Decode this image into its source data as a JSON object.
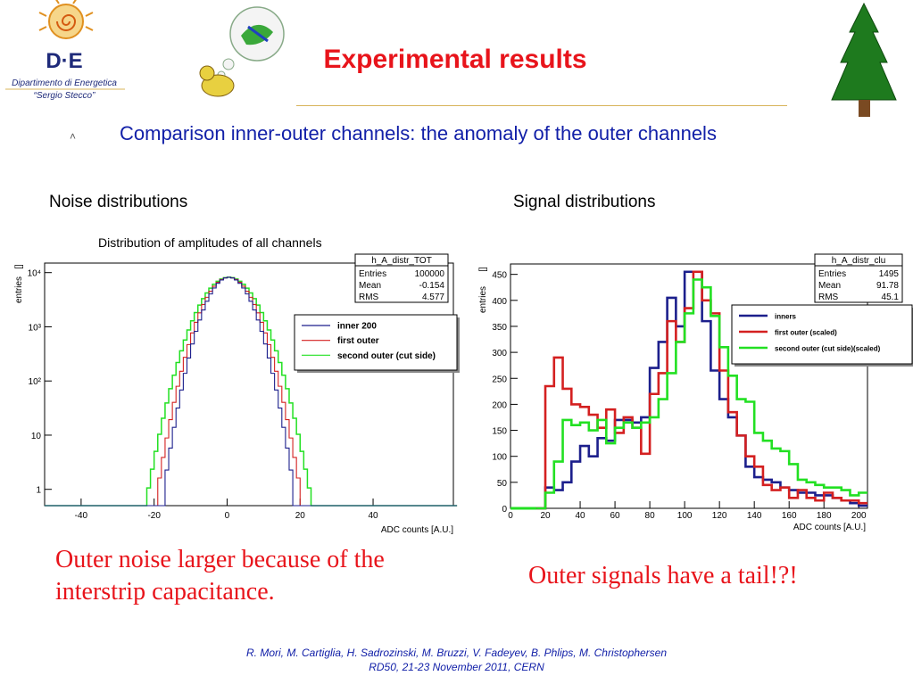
{
  "slide": {
    "title": "Experimental results",
    "bullet": "Comparison inner-outer channels: the anomaly of the outer channels",
    "logo": {
      "name": "D·E",
      "line1": "Dipartimento di Energetica",
      "line2": "“Sergio Stecco”"
    },
    "icons": {
      "left_cartoon": "dreaming-duck-icon",
      "right_tree": "fir-tree-icon"
    },
    "noise_panel_title": "Noise distributions",
    "signal_panel_title": "Signal distributions",
    "noise_conclusion": "Outer noise larger because of the interstrip capacitance.",
    "signal_conclusion": "Outer signals have a tail!?!",
    "footer_authors": "R. Mori, M. Cartiglia, H. Sadrozinski, M. Bruzzi, V. Fadeyev, B. Phlips, M. Christophersen",
    "footer_conference": "RD50, 21-23 November 2011, CERN"
  },
  "colors": {
    "title": "#e8141b",
    "bullet": "#1220a8",
    "inner": "#1c1f8c",
    "first_outer": "#d42020",
    "second_outer": "#22e022",
    "rule": "#d8b45a"
  },
  "chart_data": [
    {
      "type": "line",
      "title": "Distribution of amplitudes of all channels",
      "xlabel": "ADC counts   [A.U.]",
      "ylabel": "entries",
      "ylabel_unit": "[]",
      "y_scale": "log",
      "xlim": [
        -50,
        62
      ],
      "ylim": [
        0.5,
        15000
      ],
      "x_ticks": [
        -40,
        -20,
        0,
        20,
        40
      ],
      "y_ticks": [
        1,
        10,
        100,
        1000,
        10000
      ],
      "y_tick_labels": [
        "1",
        "10",
        "10²",
        "10³",
        "10⁴"
      ],
      "stats": {
        "name": "h_A_distr_TOT",
        "rows": [
          [
            "Entries",
            "100000"
          ],
          [
            "Mean",
            "-0.154"
          ],
          [
            "RMS",
            "4.577"
          ]
        ]
      },
      "legend_position": "top-right",
      "series": [
        {
          "name": "inner 200",
          "sigma": 4.2,
          "x": [
            -20,
            -18,
            -16,
            -14,
            -12,
            -10,
            -8,
            -6,
            -4,
            -2,
            0,
            2,
            4,
            6,
            8,
            10,
            12,
            14,
            16,
            18,
            20
          ],
          "y": [
            1.2,
            5,
            18,
            55,
            150,
            400,
            1000,
            2800,
            5200,
            7300,
            8200,
            7300,
            5200,
            2800,
            1000,
            400,
            150,
            55,
            18,
            5,
            1.2
          ]
        },
        {
          "name": "first outer",
          "sigma": 4.6,
          "x": [
            -21,
            -19,
            -17,
            -15,
            -13,
            -11,
            -9,
            -7,
            -5,
            -3,
            -1,
            1,
            3,
            5,
            7,
            9,
            11,
            13,
            15,
            17,
            19,
            21
          ],
          "y": [
            1.5,
            6,
            20,
            55,
            140,
            330,
            800,
            1800,
            3800,
            6200,
            7800,
            7800,
            6200,
            3800,
            1800,
            800,
            330,
            140,
            55,
            20,
            6,
            1.5
          ]
        },
        {
          "name": "second outer (cut side)",
          "sigma": 5.2,
          "x": [
            -24,
            -22,
            -20,
            -18,
            -16,
            -14,
            -12,
            -10,
            -8,
            -6,
            -4,
            -2,
            0,
            2,
            4,
            6,
            8,
            10,
            12,
            14,
            16,
            18,
            20,
            22,
            24
          ],
          "y": [
            1.3,
            3.5,
            9,
            22,
            50,
            110,
            250,
            540,
            1100,
            2100,
            3700,
            5600,
            7300,
            6800,
            5600,
            3700,
            2100,
            1100,
            540,
            250,
            110,
            50,
            22,
            9,
            1.3
          ]
        }
      ]
    },
    {
      "type": "line",
      "title": "",
      "xlabel": "ADC counts   [A.U.]",
      "ylabel": "entries",
      "ylabel_unit": "[]",
      "xlim": [
        0,
        205
      ],
      "ylim": [
        0,
        470
      ],
      "x_ticks": [
        0,
        20,
        40,
        60,
        80,
        100,
        120,
        140,
        160,
        180,
        200
      ],
      "y_ticks": [
        0,
        50,
        100,
        150,
        200,
        250,
        300,
        350,
        400,
        450
      ],
      "stats": {
        "name": "h_A_distr_clu",
        "rows": [
          [
            "Entries",
            "1495"
          ],
          [
            "Mean",
            "91.78"
          ],
          [
            "RMS",
            "45.1"
          ]
        ]
      },
      "legend_position": "top-right",
      "series": [
        {
          "name": "inners",
          "x": [
            15,
            20,
            25,
            30,
            35,
            40,
            45,
            50,
            55,
            60,
            65,
            70,
            75,
            80,
            85,
            90,
            95,
            100,
            105,
            110,
            115,
            120,
            125,
            130,
            135,
            140,
            145,
            150,
            155,
            160,
            165,
            170,
            175,
            180,
            185,
            190,
            195,
            200
          ],
          "y": [
            0,
            40,
            35,
            50,
            90,
            120,
            100,
            135,
            130,
            170,
            170,
            165,
            175,
            270,
            320,
            405,
            350,
            455,
            455,
            360,
            265,
            210,
            175,
            140,
            80,
            60,
            55,
            50,
            40,
            35,
            30,
            30,
            25,
            25,
            20,
            15,
            10,
            5
          ]
        },
        {
          "name": "first outer (scaled)",
          "x": [
            15,
            20,
            25,
            30,
            35,
            40,
            45,
            50,
            55,
            60,
            65,
            70,
            75,
            80,
            85,
            90,
            95,
            100,
            105,
            110,
            115,
            120,
            125,
            130,
            135,
            140,
            145,
            150,
            155,
            160,
            165,
            170,
            175,
            180,
            185,
            190,
            195,
            200
          ],
          "y": [
            0,
            235,
            290,
            230,
            200,
            195,
            180,
            155,
            190,
            145,
            175,
            155,
            105,
            220,
            260,
            360,
            320,
            385,
            455,
            400,
            375,
            265,
            185,
            140,
            100,
            80,
            45,
            35,
            40,
            20,
            35,
            20,
            15,
            30,
            20,
            15,
            15,
            10
          ]
        },
        {
          "name": "second outer (cut side)(scaled)",
          "x": [
            15,
            20,
            25,
            30,
            35,
            40,
            45,
            50,
            55,
            60,
            65,
            70,
            75,
            80,
            85,
            90,
            95,
            100,
            105,
            110,
            115,
            120,
            125,
            130,
            135,
            140,
            145,
            150,
            155,
            160,
            165,
            170,
            175,
            180,
            185,
            190,
            195,
            200
          ],
          "y": [
            0,
            30,
            90,
            170,
            160,
            165,
            150,
            170,
            125,
            155,
            165,
            155,
            165,
            175,
            210,
            260,
            320,
            375,
            440,
            425,
            370,
            310,
            255,
            210,
            205,
            145,
            130,
            115,
            110,
            85,
            55,
            50,
            45,
            40,
            40,
            35,
            25,
            30
          ]
        }
      ]
    }
  ]
}
